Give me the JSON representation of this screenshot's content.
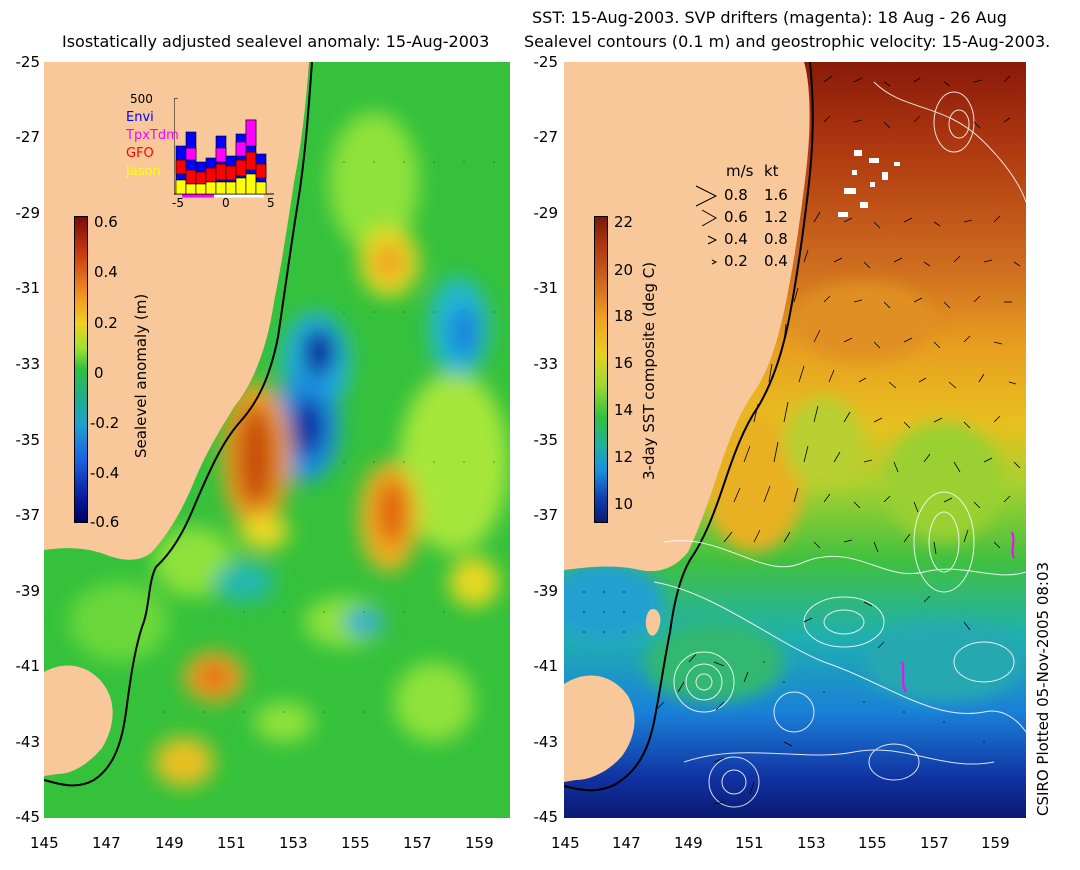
{
  "left_panel": {
    "title": "Isostatically adjusted sealevel anomaly: 15-Aug-2003",
    "colorbar_label": "Sealevel anomaly (m)",
    "colorbar_ticks": [
      "0.6",
      "0.4",
      "0.2",
      "0",
      "-0.2",
      "-0.4",
      "-0.6"
    ],
    "inset": {
      "y_max_label": "500",
      "x_ticks": [
        "-5",
        "0",
        "5"
      ],
      "legend": [
        {
          "label": "Envi",
          "color": "#0000ff"
        },
        {
          "label": "TpxTdm",
          "color": "#ff00ff"
        },
        {
          "label": "GFO",
          "color": "#ff0000"
        },
        {
          "label": "Jason",
          "color": "#ffff00"
        }
      ]
    }
  },
  "right_panel": {
    "title_line1": "SST: 15-Aug-2003. SVP drifters (magenta): 18 Aug - 26 Aug",
    "title_line2": "Sealevel contours (0.1 m) and geostrophic velocity: 15-Aug-2003.",
    "colorbar_label": "3-day SST composite (deg C)",
    "colorbar_ticks": [
      "22",
      "20",
      "18",
      "16",
      "14",
      "12",
      "10"
    ],
    "vector_legend": {
      "header_ms": "m/s",
      "header_kt": "kt",
      "rows": [
        {
          "ms": "0.8",
          "kt": "1.6"
        },
        {
          "ms": "0.6",
          "kt": "1.2"
        },
        {
          "ms": "0.4",
          "kt": "0.8"
        },
        {
          "ms": "0.2",
          "kt": "0.4"
        }
      ]
    }
  },
  "axes": {
    "x_ticks": [
      "145",
      "147",
      "149",
      "151",
      "153",
      "155",
      "157",
      "159"
    ],
    "y_ticks": [
      "-25",
      "-27",
      "-29",
      "-31",
      "-33",
      "-35",
      "-37",
      "-39",
      "-41",
      "-43",
      "-45"
    ],
    "lon_range": [
      145,
      160
    ],
    "lat_range": [
      -45,
      -25
    ]
  },
  "credit": "CSIRO Plotted 05-Nov-2005 08:03",
  "colors": {
    "land": "#f9c89a",
    "ocean_green": "#2fbe3a"
  }
}
